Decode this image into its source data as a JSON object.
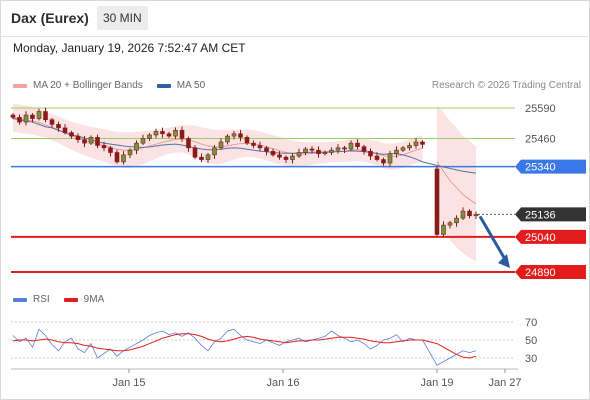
{
  "header": {
    "title": "Dax (Eurex)",
    "timeframe": "30 MIN"
  },
  "datetime": "Monday, January 19, 2026 7:52:47 AM CET",
  "legend_main": [
    {
      "label": "MA 20 + Bollinger Bands",
      "color": "#f4a3a3"
    },
    {
      "label": "MA 50",
      "color": "#2f5f9e"
    }
  ],
  "legend_rsi": [
    {
      "label": "RSI",
      "color": "#5b7fd6"
    },
    {
      "label": "9MA",
      "color": "#e02020"
    }
  ],
  "credit": "Research © 2026 Trading Central",
  "colors": {
    "resistance": "#9ccc65",
    "pivot": "#3b78e7",
    "support": "#e21b1b",
    "current": "#333333",
    "arrow": "#2a5aa0",
    "band": "#fadada",
    "candle": "#8b1a1a"
  },
  "chart_data": {
    "type": "candlestick",
    "x_ticks": [
      "Jan 15",
      "Jan 16",
      "Jan 19",
      "Jan 27"
    ],
    "price_levels": [
      {
        "value": 25590,
        "label": "25590",
        "kind": "resistance"
      },
      {
        "value": 25460,
        "label": "25460",
        "kind": "resistance"
      },
      {
        "value": 25340,
        "label": "25340",
        "kind": "pivot"
      },
      {
        "value": 25136,
        "label": "25136",
        "kind": "current"
      },
      {
        "value": 25040,
        "label": "25040",
        "kind": "support"
      },
      {
        "value": 24890,
        "label": "24890",
        "kind": "support"
      }
    ],
    "forecast_target": 24890,
    "price_close": [
      25550,
      25530,
      25560,
      25545,
      25575,
      25540,
      25520,
      25505,
      25485,
      25470,
      25455,
      25440,
      25465,
      25430,
      25420,
      25400,
      25360,
      25390,
      25410,
      25440,
      25460,
      25475,
      25490,
      25480,
      25470,
      25495,
      25460,
      25420,
      25380,
      25370,
      25390,
      25420,
      25445,
      25470,
      25480,
      25465,
      25440,
      25430,
      25420,
      25405,
      25390,
      25380,
      25370,
      25385,
      25400,
      25415,
      25410,
      25395,
      25400,
      25410,
      25420,
      25415,
      25440,
      25425,
      25405,
      25385,
      25370,
      25355,
      25395,
      25410,
      25420,
      25430,
      25445,
      25435,
      25050,
      25090,
      25100,
      25120,
      25150,
      25130,
      25136
    ],
    "ma50": [
      25545,
      25540,
      25535,
      25530,
      25520,
      25510,
      25505,
      25495,
      25485,
      25475,
      25470,
      25462,
      25455,
      25445,
      25440,
      25436,
      25432,
      25428,
      25425,
      25423,
      25422,
      25424,
      25428,
      25432,
      25434,
      25436,
      25432,
      25426,
      25420,
      25415,
      25412,
      25412,
      25414,
      25418,
      25420,
      25418,
      25414,
      25410,
      25406,
      25403,
      25400,
      25398,
      25397,
      25397,
      25398,
      25400,
      25401,
      25401,
      25402,
      25403,
      25404,
      25405,
      25407,
      25406,
      25404,
      25400,
      25396,
      25392,
      25394,
      25395,
      25390,
      25382,
      25372,
      25360,
      25345,
      25338,
      25332,
      25326,
      25320,
      25316,
      25312
    ],
    "ma20": [
      25548,
      25545,
      25540,
      25535,
      25528,
      25518,
      25508,
      25496,
      25484,
      25472,
      25462,
      25452,
      25444,
      25436,
      25430,
      25422,
      25414,
      25410,
      25410,
      25414,
      25420,
      25428,
      25436,
      25444,
      25450,
      25456,
      25458,
      25454,
      25446,
      25436,
      25428,
      25424,
      25424,
      25428,
      25434,
      25438,
      25440,
      25438,
      25432,
      25424,
      25416,
      25408,
      25400,
      25396,
      25394,
      25394,
      25396,
      25398,
      25400,
      25402,
      25404,
      25406,
      25410,
      25412,
      25410,
      25404,
      25396,
      25386,
      25382,
      25384,
      25390,
      25400,
      25410,
      25418,
      25360,
      25320,
      25280,
      25250,
      25220,
      25200,
      25180
    ],
    "band_width": [
      60,
      60,
      60,
      58,
      58,
      56,
      56,
      56,
      58,
      60,
      62,
      64,
      66,
      68,
      70,
      72,
      75,
      76,
      76,
      74,
      70,
      66,
      62,
      58,
      56,
      56,
      58,
      62,
      68,
      72,
      74,
      74,
      72,
      68,
      64,
      60,
      58,
      58,
      58,
      58,
      58,
      58,
      56,
      54,
      52,
      50,
      48,
      46,
      44,
      44,
      44,
      46,
      48,
      48,
      48,
      50,
      52,
      54,
      56,
      56,
      56,
      56,
      56,
      56,
      240,
      250,
      255,
      255,
      250,
      250,
      245
    ],
    "rsi": [
      55,
      48,
      52,
      42,
      62,
      55,
      45,
      38,
      48,
      52,
      40,
      36,
      46,
      30,
      35,
      40,
      32,
      38,
      42,
      46,
      50,
      55,
      58,
      60,
      56,
      58,
      54,
      58,
      52,
      44,
      38,
      48,
      52,
      60,
      62,
      55,
      50,
      48,
      46,
      50,
      47,
      44,
      48,
      50,
      52,
      48,
      50,
      52,
      54,
      60,
      55,
      52,
      48,
      50,
      46,
      40,
      44,
      50,
      52,
      56,
      48,
      52,
      50,
      50,
      22,
      26,
      30,
      34,
      38,
      36,
      38
    ],
    "rsi_ma": [
      49,
      50,
      50,
      49,
      50,
      51,
      50,
      48,
      47,
      47,
      46,
      44,
      43,
      41,
      40,
      39,
      38,
      38,
      39,
      41,
      43,
      46,
      49,
      52,
      54,
      56,
      57,
      57,
      56,
      54,
      51,
      49,
      48,
      49,
      51,
      53,
      54,
      53,
      51,
      50,
      49,
      48,
      47,
      48,
      49,
      49,
      50,
      50,
      51,
      52,
      53,
      53,
      53,
      52,
      51,
      49,
      48,
      47,
      47,
      48,
      49,
      50,
      50,
      50,
      46,
      42,
      38,
      34,
      31,
      30,
      32
    ],
    "rsi_levels": [
      70,
      50,
      30
    ],
    "rsi_level_labels": [
      "70",
      "50",
      "30"
    ]
  }
}
